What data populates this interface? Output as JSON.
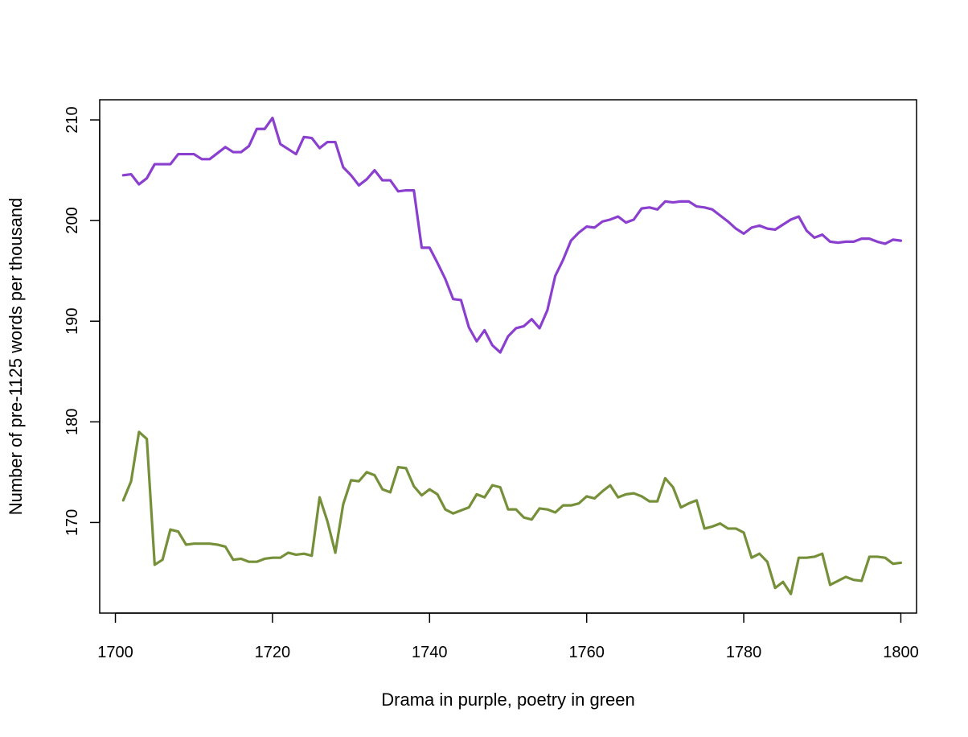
{
  "chart_data": {
    "type": "line",
    "title": "",
    "xlabel": "Drama in purple, poetry in green",
    "ylabel": "Number of pre-1125 words per thousand",
    "xlim": [
      1698,
      1802
    ],
    "ylim": [
      161,
      212
    ],
    "x_ticks": [
      1700,
      1720,
      1740,
      1760,
      1780,
      1800
    ],
    "y_ticks": [
      170,
      180,
      190,
      200,
      210
    ],
    "grid": false,
    "legend": "none",
    "x": [
      1701,
      1702,
      1703,
      1704,
      1705,
      1706,
      1707,
      1708,
      1709,
      1710,
      1711,
      1712,
      1713,
      1714,
      1715,
      1716,
      1717,
      1718,
      1719,
      1720,
      1721,
      1722,
      1723,
      1724,
      1725,
      1726,
      1727,
      1728,
      1729,
      1730,
      1731,
      1732,
      1733,
      1734,
      1735,
      1736,
      1737,
      1738,
      1739,
      1740,
      1741,
      1742,
      1743,
      1744,
      1745,
      1746,
      1747,
      1748,
      1749,
      1750,
      1751,
      1752,
      1753,
      1754,
      1755,
      1756,
      1757,
      1758,
      1759,
      1760,
      1761,
      1762,
      1763,
      1764,
      1765,
      1766,
      1767,
      1768,
      1769,
      1770,
      1771,
      1772,
      1773,
      1774,
      1775,
      1776,
      1777,
      1778,
      1779,
      1780,
      1781,
      1782,
      1783,
      1784,
      1785,
      1786,
      1787,
      1788,
      1789,
      1790,
      1791,
      1792,
      1793,
      1794,
      1795,
      1796,
      1797,
      1798,
      1799,
      1800
    ],
    "series": [
      {
        "color": "#8b3fcf",
        "values": [
          204.5,
          204.6,
          203.6,
          204.2,
          205.6,
          205.6,
          205.6,
          206.6,
          206.6,
          206.6,
          206.1,
          206.1,
          206.7,
          207.3,
          206.8,
          206.8,
          207.4,
          209.1,
          209.1,
          210.2,
          207.6,
          207.1,
          206.6,
          208.3,
          208.2,
          207.2,
          207.8,
          207.8,
          205.3,
          204.5,
          203.5,
          204.1,
          205.0,
          204.0,
          204.0,
          202.9,
          203.0,
          203.0,
          197.3,
          197.3,
          195.8,
          194.2,
          192.2,
          192.1,
          189.4,
          188.0,
          189.1,
          187.6,
          186.9,
          188.5,
          189.3,
          189.5,
          190.2,
          189.3,
          191.1,
          194.5,
          196.1,
          198.0,
          198.8,
          199.4,
          199.3,
          199.9,
          200.1,
          200.4,
          199.8,
          200.1,
          201.2,
          201.3,
          201.1,
          201.9,
          201.8,
          201.9,
          201.9,
          201.4,
          201.3,
          201.1,
          200.5,
          199.9,
          199.2,
          198.7,
          199.3,
          199.5,
          199.2,
          199.1,
          199.6,
          200.1,
          200.4,
          199.0,
          198.3,
          198.6,
          197.9,
          197.8,
          197.9,
          197.9,
          198.2,
          198.2,
          197.9,
          197.7,
          198.1,
          198.0
        ]
      },
      {
        "color": "#76903a",
        "values": [
          172.2,
          174.1,
          179.0,
          178.3,
          165.8,
          166.3,
          169.3,
          169.1,
          167.8,
          167.9,
          167.9,
          167.9,
          167.8,
          167.6,
          166.3,
          166.4,
          166.1,
          166.1,
          166.4,
          166.5,
          166.5,
          167.0,
          166.8,
          166.9,
          166.7,
          172.5,
          170.1,
          167.0,
          171.8,
          174.2,
          174.1,
          175.0,
          174.7,
          173.3,
          173.0,
          175.5,
          175.4,
          173.6,
          172.7,
          173.3,
          172.8,
          171.3,
          170.9,
          171.2,
          171.5,
          172.8,
          172.5,
          173.7,
          173.5,
          171.3,
          171.3,
          170.5,
          170.3,
          171.4,
          171.3,
          171.0,
          171.7,
          171.7,
          171.9,
          172.6,
          172.4,
          173.1,
          173.7,
          172.5,
          172.8,
          172.9,
          172.6,
          172.1,
          172.1,
          174.4,
          173.5,
          171.5,
          171.9,
          172.2,
          169.4,
          169.6,
          169.9,
          169.4,
          169.4,
          169.0,
          166.5,
          166.9,
          166.1,
          163.5,
          164.1,
          162.9,
          166.5,
          166.5,
          166.6,
          166.9,
          163.8,
          164.2,
          164.6,
          164.3,
          164.2,
          166.6,
          166.6,
          166.5,
          165.9,
          166.0
        ]
      }
    ]
  }
}
